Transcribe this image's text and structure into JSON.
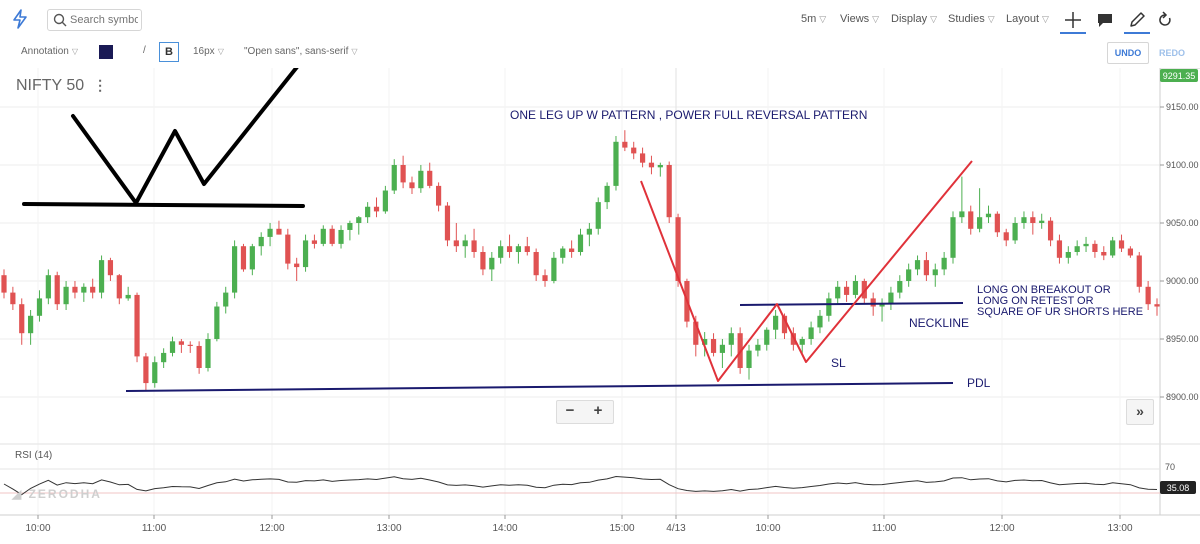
{
  "toolbar": {
    "search_placeholder": "Search symbol",
    "interval": "5m",
    "views": "Views",
    "display": "Display",
    "studies": "Studies",
    "layout": "Layout"
  },
  "annotation_bar": {
    "tool": "Annotation",
    "color": "#1a1a55",
    "slash": "/",
    "bold": "B",
    "font_size": "16px",
    "font_family": "\"Open sans\", sans-serif",
    "undo": "UNDO",
    "redo": "REDO"
  },
  "symbol": "NIFTY 50",
  "watermark": "ZERODHA",
  "rsi": {
    "label": "RSI (14)",
    "level": "70",
    "value": "35.08"
  },
  "chart_data": {
    "type": "candlestick",
    "title": "ONE LEG UP W PATTERN , POWER FULL REVERSAL PATTERN",
    "last_price": "9291.35",
    "y_ticks": [
      "9150.00",
      "9100.00",
      "9050.00",
      "9000.00",
      "8950.00",
      "8900.00"
    ],
    "x_ticks": [
      "10:00",
      "11:00",
      "12:00",
      "13:00",
      "14:00",
      "15:00",
      "4/13",
      "10:00",
      "11:00",
      "12:00",
      "13:00"
    ],
    "up_color": "#4caf50",
    "down_color": "#e05252",
    "candles": [
      {
        "o": 9005,
        "h": 9010,
        "l": 8985,
        "c": 8990
      },
      {
        "o": 8990,
        "h": 8995,
        "l": 8975,
        "c": 8980
      },
      {
        "o": 8980,
        "h": 8985,
        "l": 8945,
        "c": 8955
      },
      {
        "o": 8955,
        "h": 8975,
        "l": 8945,
        "c": 8970
      },
      {
        "o": 8970,
        "h": 8992,
        "l": 8965,
        "c": 8985
      },
      {
        "o": 8985,
        "h": 9010,
        "l": 8980,
        "c": 9005
      },
      {
        "o": 9005,
        "h": 9008,
        "l": 8975,
        "c": 8980
      },
      {
        "o": 8980,
        "h": 9000,
        "l": 8975,
        "c": 8995
      },
      {
        "o": 8995,
        "h": 9000,
        "l": 8985,
        "c": 8990
      },
      {
        "o": 8990,
        "h": 8998,
        "l": 8982,
        "c": 8995
      },
      {
        "o": 8995,
        "h": 9002,
        "l": 8985,
        "c": 8990
      },
      {
        "o": 8990,
        "h": 9022,
        "l": 8985,
        "c": 9018
      },
      {
        "o": 9018,
        "h": 9020,
        "l": 9000,
        "c": 9005
      },
      {
        "o": 9005,
        "h": 9006,
        "l": 8980,
        "c": 8985
      },
      {
        "o": 8985,
        "h": 8995,
        "l": 8983,
        "c": 8988
      },
      {
        "o": 8988,
        "h": 8990,
        "l": 8930,
        "c": 8935
      },
      {
        "o": 8935,
        "h": 8938,
        "l": 8905,
        "c": 8912
      },
      {
        "o": 8912,
        "h": 8935,
        "l": 8908,
        "c": 8930
      },
      {
        "o": 8930,
        "h": 8942,
        "l": 8925,
        "c": 8938
      },
      {
        "o": 8938,
        "h": 8952,
        "l": 8935,
        "c": 8948
      },
      {
        "o": 8948,
        "h": 8950,
        "l": 8938,
        "c": 8945
      },
      {
        "o": 8945,
        "h": 8948,
        "l": 8938,
        "c": 8944
      },
      {
        "o": 8944,
        "h": 8948,
        "l": 8920,
        "c": 8925
      },
      {
        "o": 8925,
        "h": 8955,
        "l": 8922,
        "c": 8950
      },
      {
        "o": 8950,
        "h": 8982,
        "l": 8948,
        "c": 8978
      },
      {
        "o": 8978,
        "h": 8995,
        "l": 8972,
        "c": 8990
      },
      {
        "o": 8990,
        "h": 9035,
        "l": 8985,
        "c": 9030
      },
      {
        "o": 9030,
        "h": 9032,
        "l": 9008,
        "c": 9010
      },
      {
        "o": 9010,
        "h": 9032,
        "l": 9005,
        "c": 9030
      },
      {
        "o": 9030,
        "h": 9042,
        "l": 9022,
        "c": 9038
      },
      {
        "o": 9038,
        "h": 9050,
        "l": 9030,
        "c": 9045
      },
      {
        "o": 9045,
        "h": 9052,
        "l": 9040,
        "c": 9040
      },
      {
        "o": 9040,
        "h": 9045,
        "l": 9010,
        "c": 9015
      },
      {
        "o": 9015,
        "h": 9020,
        "l": 9000,
        "c": 9012
      },
      {
        "o": 9012,
        "h": 9040,
        "l": 9008,
        "c": 9035
      },
      {
        "o": 9035,
        "h": 9040,
        "l": 9028,
        "c": 9032
      },
      {
        "o": 9032,
        "h": 9048,
        "l": 9030,
        "c": 9045
      },
      {
        "o": 9045,
        "h": 9048,
        "l": 9030,
        "c": 9032
      },
      {
        "o": 9032,
        "h": 9048,
        "l": 9028,
        "c": 9044
      },
      {
        "o": 9044,
        "h": 9052,
        "l": 9035,
        "c": 9050
      },
      {
        "o": 9050,
        "h": 9056,
        "l": 9040,
        "c": 9055
      },
      {
        "o": 9055,
        "h": 9068,
        "l": 9050,
        "c": 9064
      },
      {
        "o": 9064,
        "h": 9072,
        "l": 9055,
        "c": 9060
      },
      {
        "o": 9060,
        "h": 9082,
        "l": 9058,
        "c": 9078
      },
      {
        "o": 9078,
        "h": 9105,
        "l": 9075,
        "c": 9100
      },
      {
        "o": 9100,
        "h": 9108,
        "l": 9080,
        "c": 9085
      },
      {
        "o": 9085,
        "h": 9090,
        "l": 9075,
        "c": 9080
      },
      {
        "o": 9080,
        "h": 9100,
        "l": 9076,
        "c": 9095
      },
      {
        "o": 9095,
        "h": 9102,
        "l": 9080,
        "c": 9082
      },
      {
        "o": 9082,
        "h": 9085,
        "l": 9060,
        "c": 9065
      },
      {
        "o": 9065,
        "h": 9068,
        "l": 9030,
        "c": 9035
      },
      {
        "o": 9035,
        "h": 9050,
        "l": 9025,
        "c": 9030
      },
      {
        "o": 9030,
        "h": 9040,
        "l": 9020,
        "c": 9035
      },
      {
        "o": 9035,
        "h": 9045,
        "l": 9020,
        "c": 9025
      },
      {
        "o": 9025,
        "h": 9030,
        "l": 9005,
        "c": 9010
      },
      {
        "o": 9010,
        "h": 9025,
        "l": 9000,
        "c": 9020
      },
      {
        "o": 9020,
        "h": 9035,
        "l": 9015,
        "c": 9030
      },
      {
        "o": 9030,
        "h": 9040,
        "l": 9020,
        "c": 9025
      },
      {
        "o": 9025,
        "h": 9032,
        "l": 9015,
        "c": 9030
      },
      {
        "o": 9030,
        "h": 9038,
        "l": 9022,
        "c": 9025
      },
      {
        "o": 9025,
        "h": 9028,
        "l": 9000,
        "c": 9005
      },
      {
        "o": 9005,
        "h": 9010,
        "l": 8995,
        "c": 9000
      },
      {
        "o": 9000,
        "h": 9025,
        "l": 8998,
        "c": 9020
      },
      {
        "o": 9020,
        "h": 9030,
        "l": 9015,
        "c": 9028
      },
      {
        "o": 9028,
        "h": 9035,
        "l": 9020,
        "c": 9025
      },
      {
        "o": 9025,
        "h": 9045,
        "l": 9022,
        "c": 9040
      },
      {
        "o": 9040,
        "h": 9050,
        "l": 9030,
        "c": 9045
      },
      {
        "o": 9045,
        "h": 9072,
        "l": 9040,
        "c": 9068
      },
      {
        "o": 9068,
        "h": 9085,
        "l": 9062,
        "c": 9082
      },
      {
        "o": 9082,
        "h": 9125,
        "l": 9078,
        "c": 9120
      },
      {
        "o": 9120,
        "h": 9130,
        "l": 9112,
        "c": 9115
      },
      {
        "o": 9115,
        "h": 9120,
        "l": 9105,
        "c": 9110
      },
      {
        "o": 9110,
        "h": 9115,
        "l": 9098,
        "c": 9102
      },
      {
        "o": 9102,
        "h": 9108,
        "l": 9092,
        "c": 9098
      },
      {
        "o": 9098,
        "h": 9102,
        "l": 9090,
        "c": 9100
      },
      {
        "o": 9100,
        "h": 9103,
        "l": 9050,
        "c": 9055
      },
      {
        "o": 9055,
        "h": 9058,
        "l": 8995,
        "c": 9000
      },
      {
        "o": 9000,
        "h": 9002,
        "l": 8960,
        "c": 8965
      },
      {
        "o": 8965,
        "h": 8970,
        "l": 8935,
        "c": 8945
      },
      {
        "o": 8945,
        "h": 8956,
        "l": 8935,
        "c": 8950
      },
      {
        "o": 8950,
        "h": 8955,
        "l": 8935,
        "c": 8938
      },
      {
        "o": 8938,
        "h": 8950,
        "l": 8925,
        "c": 8945
      },
      {
        "o": 8945,
        "h": 8960,
        "l": 8935,
        "c": 8955
      },
      {
        "o": 8955,
        "h": 8960,
        "l": 8920,
        "c": 8925
      },
      {
        "o": 8925,
        "h": 8945,
        "l": 8915,
        "c": 8940
      },
      {
        "o": 8940,
        "h": 8950,
        "l": 8935,
        "c": 8945
      },
      {
        "o": 8945,
        "h": 8960,
        "l": 8940,
        "c": 8958
      },
      {
        "o": 8958,
        "h": 8975,
        "l": 8950,
        "c": 8970
      },
      {
        "o": 8970,
        "h": 8972,
        "l": 8950,
        "c": 8955
      },
      {
        "o": 8955,
        "h": 8960,
        "l": 8940,
        "c": 8945
      },
      {
        "o": 8945,
        "h": 8952,
        "l": 8938,
        "c": 8950
      },
      {
        "o": 8950,
        "h": 8965,
        "l": 8945,
        "c": 8960
      },
      {
        "o": 8960,
        "h": 8975,
        "l": 8955,
        "c": 8970
      },
      {
        "o": 8970,
        "h": 8990,
        "l": 8965,
        "c": 8985
      },
      {
        "o": 8985,
        "h": 9000,
        "l": 8980,
        "c": 8995
      },
      {
        "o": 8995,
        "h": 9000,
        "l": 8982,
        "c": 8988
      },
      {
        "o": 8988,
        "h": 9005,
        "l": 8985,
        "c": 9000
      },
      {
        "o": 9000,
        "h": 9002,
        "l": 8980,
        "c": 8985
      },
      {
        "o": 8985,
        "h": 8990,
        "l": 8970,
        "c": 8978
      },
      {
        "o": 8978,
        "h": 8985,
        "l": 8965,
        "c": 8980
      },
      {
        "o": 8980,
        "h": 8995,
        "l": 8975,
        "c": 8990
      },
      {
        "o": 8990,
        "h": 9005,
        "l": 8985,
        "c": 9000
      },
      {
        "o": 9000,
        "h": 9015,
        "l": 8995,
        "c": 9010
      },
      {
        "o": 9010,
        "h": 9022,
        "l": 9005,
        "c": 9018
      },
      {
        "o": 9018,
        "h": 9025,
        "l": 9000,
        "c": 9005
      },
      {
        "o": 9005,
        "h": 9015,
        "l": 8995,
        "c": 9010
      },
      {
        "o": 9010,
        "h": 9025,
        "l": 9005,
        "c": 9020
      },
      {
        "o": 9020,
        "h": 9060,
        "l": 9015,
        "c": 9055
      },
      {
        "o": 9055,
        "h": 9090,
        "l": 9050,
        "c": 9060
      },
      {
        "o": 9060,
        "h": 9065,
        "l": 9040,
        "c": 9045
      },
      {
        "o": 9045,
        "h": 9080,
        "l": 9042,
        "c": 9055
      },
      {
        "o": 9055,
        "h": 9065,
        "l": 9050,
        "c": 9058
      },
      {
        "o": 9058,
        "h": 9060,
        "l": 9038,
        "c": 9042
      },
      {
        "o": 9042,
        "h": 9045,
        "l": 9030,
        "c": 9035
      },
      {
        "o": 9035,
        "h": 9055,
        "l": 9032,
        "c": 9050
      },
      {
        "o": 9050,
        "h": 9060,
        "l": 9045,
        "c": 9055
      },
      {
        "o": 9055,
        "h": 9060,
        "l": 9040,
        "c": 9050
      },
      {
        "o": 9050,
        "h": 9058,
        "l": 9045,
        "c": 9052
      },
      {
        "o": 9052,
        "h": 9055,
        "l": 9030,
        "c": 9035
      },
      {
        "o": 9035,
        "h": 9040,
        "l": 9015,
        "c": 9020
      },
      {
        "o": 9020,
        "h": 9030,
        "l": 9015,
        "c": 9025
      },
      {
        "o": 9025,
        "h": 9035,
        "l": 9022,
        "c": 9030
      },
      {
        "o": 9030,
        "h": 9038,
        "l": 9025,
        "c": 9032
      },
      {
        "o": 9032,
        "h": 9035,
        "l": 9020,
        "c": 9025
      },
      {
        "o": 9025,
        "h": 9030,
        "l": 9018,
        "c": 9022
      },
      {
        "o": 9022,
        "h": 9038,
        "l": 9020,
        "c": 9035
      },
      {
        "o": 9035,
        "h": 9040,
        "l": 9025,
        "c": 9028
      },
      {
        "o": 9028,
        "h": 9030,
        "l": 9020,
        "c": 9022
      },
      {
        "o": 9022,
        "h": 9025,
        "l": 8990,
        "c": 8995
      },
      {
        "o": 8995,
        "h": 9000,
        "l": 8975,
        "c": 8980
      },
      {
        "o": 8980,
        "h": 8985,
        "l": 8970,
        "c": 8978
      }
    ],
    "annotations": {
      "neckline": "NECKLINE",
      "pdl": "PDL",
      "sl": "SL",
      "long_note": [
        "LONG ON BREAKOUT OR",
        "LONG ON RETEST OR",
        "SQUARE OF UR SHORTS HERE"
      ]
    }
  }
}
